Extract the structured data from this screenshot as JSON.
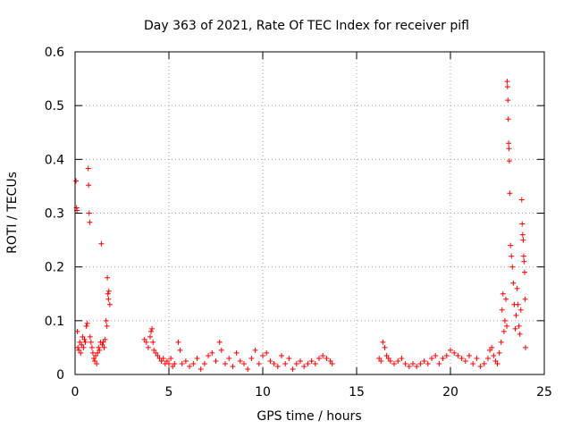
{
  "chart_data": {
    "type": "scatter",
    "title": "Day 363 of 2021, Rate Of TEC Index for receiver pifl",
    "xlabel": "GPS time / hours",
    "ylabel": "ROTI / TECUs",
    "xlim": [
      0,
      25
    ],
    "ylim": [
      0,
      0.6
    ],
    "xticks": [
      0,
      5,
      10,
      15,
      20,
      25
    ],
    "yticks": [
      0,
      0.1,
      0.2,
      0.3,
      0.4,
      0.5,
      0.6
    ],
    "grid": true,
    "marker": "+",
    "color": "#ff0000",
    "series": [
      {
        "name": "ROTI",
        "points": [
          [
            0.05,
            0.36
          ],
          [
            0.08,
            0.31
          ],
          [
            0.1,
            0.305
          ],
          [
            0.12,
            0.08
          ],
          [
            0.15,
            0.05
          ],
          [
            0.2,
            0.045
          ],
          [
            0.25,
            0.06
          ],
          [
            0.3,
            0.04
          ],
          [
            0.35,
            0.055
          ],
          [
            0.4,
            0.07
          ],
          [
            0.45,
            0.05
          ],
          [
            0.5,
            0.065
          ],
          [
            0.55,
            0.06
          ],
          [
            0.6,
            0.09
          ],
          [
            0.65,
            0.095
          ],
          [
            0.7,
            0.383
          ],
          [
            0.72,
            0.352
          ],
          [
            0.75,
            0.3
          ],
          [
            0.78,
            0.283
          ],
          [
            0.8,
            0.07
          ],
          [
            0.85,
            0.06
          ],
          [
            0.9,
            0.05
          ],
          [
            0.95,
            0.04
          ],
          [
            1.0,
            0.03
          ],
          [
            1.05,
            0.025
          ],
          [
            1.1,
            0.035
          ],
          [
            1.15,
            0.02
          ],
          [
            1.2,
            0.04
          ],
          [
            1.25,
            0.05
          ],
          [
            1.3,
            0.045
          ],
          [
            1.35,
            0.06
          ],
          [
            1.4,
            0.243
          ],
          [
            1.45,
            0.055
          ],
          [
            1.5,
            0.06
          ],
          [
            1.55,
            0.05
          ],
          [
            1.6,
            0.065
          ],
          [
            1.65,
            0.1
          ],
          [
            1.7,
            0.09
          ],
          [
            1.72,
            0.18
          ],
          [
            1.75,
            0.15
          ],
          [
            1.78,
            0.14
          ],
          [
            1.8,
            0.155
          ],
          [
            1.85,
            0.13
          ],
          [
            3.7,
            0.065
          ],
          [
            3.8,
            0.06
          ],
          [
            3.9,
            0.05
          ],
          [
            4.0,
            0.07
          ],
          [
            4.05,
            0.08
          ],
          [
            4.1,
            0.085
          ],
          [
            4.15,
            0.06
          ],
          [
            4.2,
            0.045
          ],
          [
            4.3,
            0.04
          ],
          [
            4.4,
            0.035
          ],
          [
            4.5,
            0.03
          ],
          [
            4.6,
            0.025
          ],
          [
            4.7,
            0.03
          ],
          [
            4.8,
            0.02
          ],
          [
            4.9,
            0.025
          ],
          [
            5.0,
            0.02
          ],
          [
            5.1,
            0.03
          ],
          [
            5.2,
            0.015
          ],
          [
            5.3,
            0.02
          ],
          [
            5.5,
            0.06
          ],
          [
            5.6,
            0.045
          ],
          [
            5.7,
            0.02
          ],
          [
            5.9,
            0.025
          ],
          [
            6.1,
            0.015
          ],
          [
            6.3,
            0.02
          ],
          [
            6.5,
            0.03
          ],
          [
            6.7,
            0.01
          ],
          [
            6.9,
            0.02
          ],
          [
            7.1,
            0.035
          ],
          [
            7.3,
            0.04
          ],
          [
            7.5,
            0.025
          ],
          [
            7.7,
            0.06
          ],
          [
            7.8,
            0.045
          ],
          [
            8.0,
            0.02
          ],
          [
            8.2,
            0.03
          ],
          [
            8.4,
            0.015
          ],
          [
            8.6,
            0.04
          ],
          [
            8.8,
            0.025
          ],
          [
            9.0,
            0.02
          ],
          [
            9.2,
            0.01
          ],
          [
            9.4,
            0.03
          ],
          [
            9.6,
            0.045
          ],
          [
            9.8,
            0.02
          ],
          [
            10.0,
            0.035
          ],
          [
            10.2,
            0.04
          ],
          [
            10.4,
            0.025
          ],
          [
            10.6,
            0.02
          ],
          [
            10.8,
            0.015
          ],
          [
            11.0,
            0.035
          ],
          [
            11.2,
            0.02
          ],
          [
            11.4,
            0.03
          ],
          [
            11.6,
            0.01
          ],
          [
            11.8,
            0.02
          ],
          [
            12.0,
            0.025
          ],
          [
            12.2,
            0.015
          ],
          [
            12.4,
            0.02
          ],
          [
            12.6,
            0.025
          ],
          [
            12.8,
            0.02
          ],
          [
            13.0,
            0.03
          ],
          [
            13.2,
            0.035
          ],
          [
            13.4,
            0.03
          ],
          [
            13.6,
            0.025
          ],
          [
            13.7,
            0.02
          ],
          [
            16.2,
            0.03
          ],
          [
            16.3,
            0.025
          ],
          [
            16.4,
            0.06
          ],
          [
            16.5,
            0.05
          ],
          [
            16.6,
            0.035
          ],
          [
            16.7,
            0.03
          ],
          [
            16.8,
            0.025
          ],
          [
            17.0,
            0.02
          ],
          [
            17.2,
            0.025
          ],
          [
            17.4,
            0.03
          ],
          [
            17.6,
            0.02
          ],
          [
            17.8,
            0.015
          ],
          [
            18.0,
            0.02
          ],
          [
            18.2,
            0.015
          ],
          [
            18.4,
            0.02
          ],
          [
            18.6,
            0.025
          ],
          [
            18.8,
            0.02
          ],
          [
            19.0,
            0.03
          ],
          [
            19.2,
            0.035
          ],
          [
            19.4,
            0.02
          ],
          [
            19.6,
            0.03
          ],
          [
            19.8,
            0.035
          ],
          [
            20.0,
            0.045
          ],
          [
            20.2,
            0.04
          ],
          [
            20.4,
            0.035
          ],
          [
            20.6,
            0.03
          ],
          [
            20.8,
            0.025
          ],
          [
            21.0,
            0.035
          ],
          [
            21.2,
            0.02
          ],
          [
            21.4,
            0.03
          ],
          [
            21.6,
            0.015
          ],
          [
            21.8,
            0.02
          ],
          [
            22.0,
            0.03
          ],
          [
            22.1,
            0.045
          ],
          [
            22.2,
            0.05
          ],
          [
            22.3,
            0.035
          ],
          [
            22.4,
            0.025
          ],
          [
            22.5,
            0.02
          ],
          [
            22.6,
            0.04
          ],
          [
            22.7,
            0.06
          ],
          [
            22.75,
            0.12
          ],
          [
            22.8,
            0.15
          ],
          [
            22.85,
            0.08
          ],
          [
            22.9,
            0.1
          ],
          [
            22.95,
            0.14
          ],
          [
            23.0,
            0.09
          ],
          [
            23.02,
            0.545
          ],
          [
            23.04,
            0.535
          ],
          [
            23.06,
            0.51
          ],
          [
            23.08,
            0.475
          ],
          [
            23.1,
            0.43
          ],
          [
            23.12,
            0.42
          ],
          [
            23.14,
            0.397
          ],
          [
            23.16,
            0.337
          ],
          [
            23.2,
            0.24
          ],
          [
            23.25,
            0.22
          ],
          [
            23.3,
            0.2
          ],
          [
            23.35,
            0.17
          ],
          [
            23.4,
            0.13
          ],
          [
            23.45,
            0.085
          ],
          [
            23.5,
            0.11
          ],
          [
            23.55,
            0.16
          ],
          [
            23.6,
            0.13
          ],
          [
            23.65,
            0.09
          ],
          [
            23.7,
            0.075
          ],
          [
            23.75,
            0.12
          ],
          [
            23.8,
            0.325
          ],
          [
            23.82,
            0.28
          ],
          [
            23.85,
            0.26
          ],
          [
            23.88,
            0.25
          ],
          [
            23.9,
            0.22
          ],
          [
            23.92,
            0.21
          ],
          [
            23.95,
            0.19
          ],
          [
            23.98,
            0.14
          ],
          [
            24.0,
            0.05
          ]
        ]
      }
    ]
  }
}
